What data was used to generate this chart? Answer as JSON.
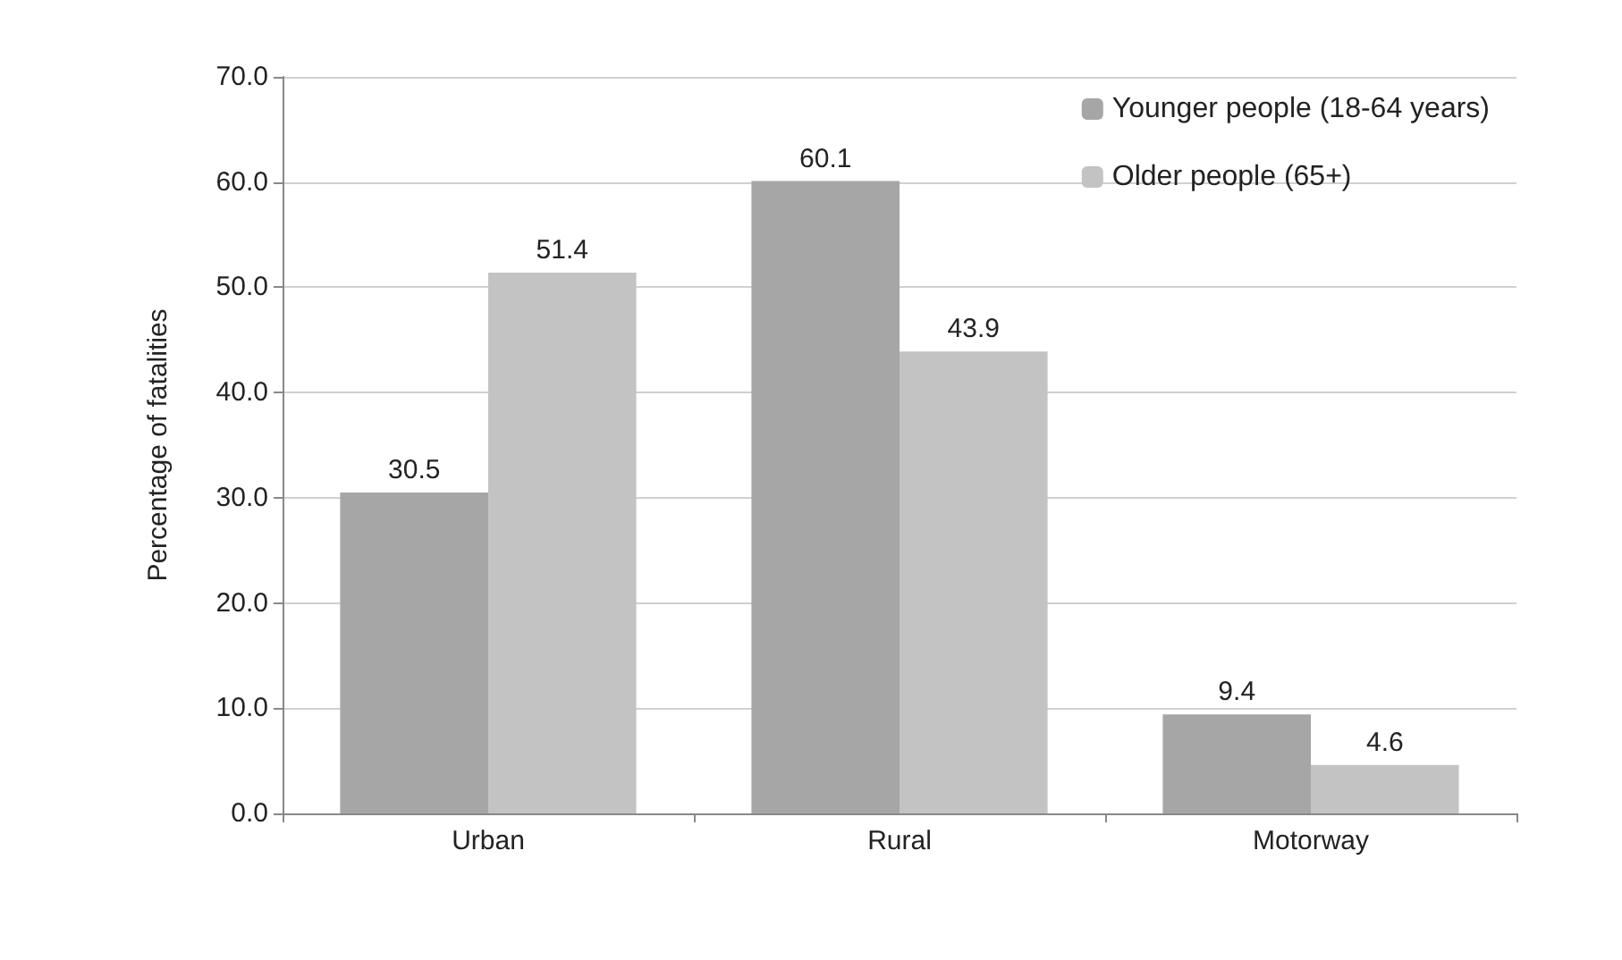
{
  "chart_data": {
    "type": "bar",
    "ylabel": "Percentage of fatalities",
    "categories": [
      "Urban",
      "Rural",
      "Motorway"
    ],
    "series": [
      {
        "name": "Younger people (18-64 years)",
        "color": "#a6a6a6",
        "values": [
          30.5,
          60.1,
          9.4
        ]
      },
      {
        "name": "Older people (65+)",
        "color": "#c3c3c3",
        "values": [
          51.4,
          43.9,
          4.6
        ]
      }
    ],
    "ylim": [
      0,
      70
    ],
    "yticks": [
      {
        "value": 0,
        "label": "0.0"
      },
      {
        "value": 10,
        "label": "10.0"
      },
      {
        "value": 20,
        "label": "20.0"
      },
      {
        "value": 30,
        "label": "30.0"
      },
      {
        "value": 40,
        "label": "40.0"
      },
      {
        "value": 50,
        "label": "50.0"
      },
      {
        "value": 60,
        "label": "60.0"
      },
      {
        "value": 70,
        "label": "70.0"
      }
    ],
    "grid": "y",
    "legend": "top right",
    "data_labels": true
  }
}
